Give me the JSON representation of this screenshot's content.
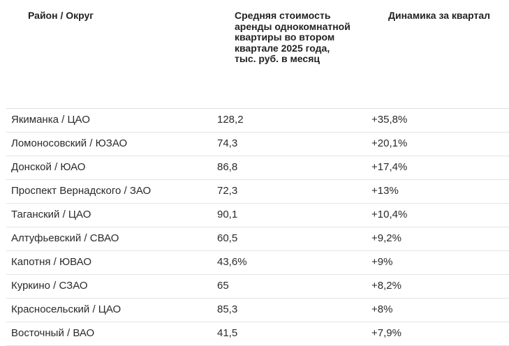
{
  "header": {
    "district": "Район / Округ",
    "price": "Средняя стоимость аренды однокомнатной квартиры во втором квартале 2025 года, тыс. руб. в месяц",
    "change": "Динамика за квартал"
  },
  "rows": [
    {
      "district": "Якиманка / ЦАО",
      "price": "128,2",
      "change": "+35,8%"
    },
    {
      "district": "Ломоносовский / ЮЗАО",
      "price": "74,3",
      "change": "+20,1%"
    },
    {
      "district": "Донской / ЮАО",
      "price": "86,8",
      "change": "+17,4%"
    },
    {
      "district": "Проспект Вернадского / ЗАО",
      "price": "72,3",
      "change": "+13%"
    },
    {
      "district": "Таганский / ЦАО",
      "price": "90,1",
      "change": "+10,4%"
    },
    {
      "district": "Алтуфьевский / СВАО",
      "price": "60,5",
      "change": "+9,2%"
    },
    {
      "district": "Капотня / ЮВАО",
      "price": "43,6%",
      "change": "+9%"
    },
    {
      "district": "Куркино / СЗАО",
      "price": "65",
      "change": "+8,2%"
    },
    {
      "district": "Красносельский / ЦАО",
      "price": "85,3",
      "change": "+8%"
    },
    {
      "district": "Восточный / ВАО",
      "price": "41,5",
      "change": "+7,9%"
    }
  ]
}
